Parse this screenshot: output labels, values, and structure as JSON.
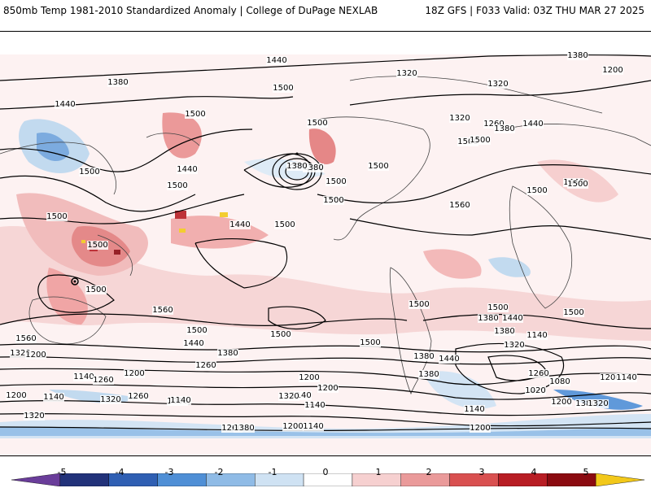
{
  "header": {
    "title_left": "850mb Temp 1981-2010 Standardized Anomaly | College of DuPage NEXLAB",
    "title_right": "18Z GFS | F033 Valid: 03Z THU MAR 27 2025"
  },
  "map": {
    "contour_labels": [
      "1440",
      "1500",
      "1380",
      "1380",
      "1380",
      "1440",
      "1500",
      "1500",
      "1440",
      "1500",
      "1500",
      "1500",
      "1500",
      "1440",
      "1500",
      "1500",
      "1380",
      "1500",
      "1500",
      "1560",
      "1500",
      "1320",
      "1320",
      "1200",
      "1320",
      "1260",
      "1380",
      "1440",
      "1500",
      "1440",
      "1500",
      "1560",
      "1500",
      "1500",
      "1500",
      "1500",
      "1560",
      "1500",
      "1500",
      "1440",
      "1380",
      "1320",
      "1200",
      "1140",
      "1380",
      "1500",
      "1440",
      "1380",
      "1260",
      "1320",
      "1200",
      "1140",
      "1200",
      "1260",
      "1200",
      "1140",
      "1320",
      "1260",
      "1080",
      "1140",
      "1200",
      "1200",
      "1140",
      "1320",
      "1380",
      "1440",
      "1380",
      "1260",
      "1080",
      "1020",
      "1140",
      "1140",
      "1140",
      "1200",
      "1260",
      "1320",
      "1380",
      "1200",
      "1500",
      "1380",
      "1320",
      "1200",
      "1140"
    ],
    "colors": {
      "contour": "#000000",
      "coast": "#444444"
    }
  },
  "colorbar": {
    "ticks": [
      "-5",
      "-4",
      "-3",
      "-2",
      "-1",
      "0",
      "1",
      "2",
      "3",
      "4",
      "5"
    ],
    "colors": [
      "#6a3d9a",
      "#22327a",
      "#2f5fb3",
      "#4f8fd6",
      "#8fbbe6",
      "#cfe2f3",
      "#ffffff",
      "#f6d0d0",
      "#ea9a9a",
      "#d95050",
      "#b81d24",
      "#8b0a10",
      "#f2c81a"
    ]
  }
}
